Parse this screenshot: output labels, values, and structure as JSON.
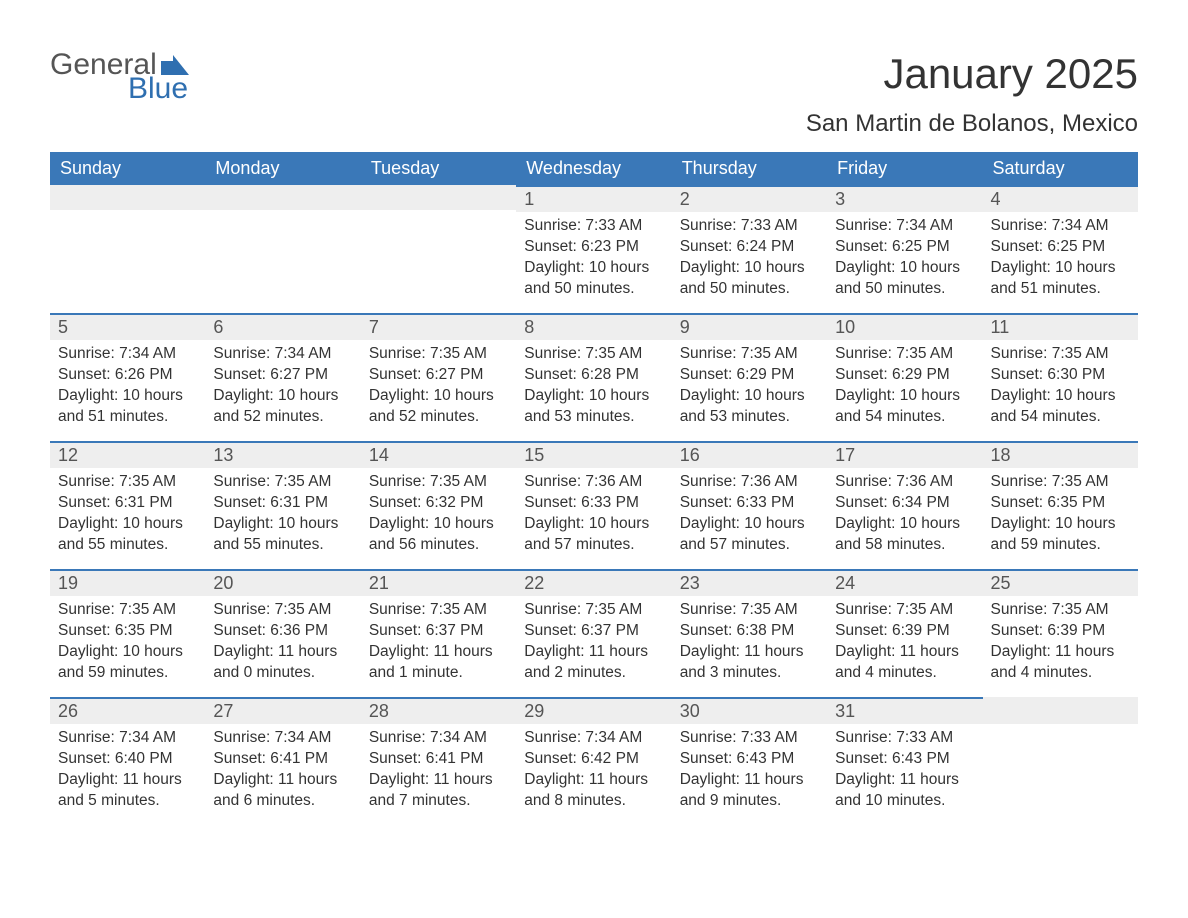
{
  "brand": {
    "general": "General",
    "blue": "Blue",
    "accent_color": "#2f6fb0"
  },
  "title": "January 2025",
  "location": "San Martin de Bolanos, Mexico",
  "colors": {
    "header_bg": "#3a78b8",
    "header_text": "#ffffff",
    "daybar_bg": "#eeeeee",
    "daybar_border": "#3a78b8",
    "body_bg": "#ffffff",
    "text": "#333333",
    "muted": "#555555"
  },
  "weekdays": [
    "Sunday",
    "Monday",
    "Tuesday",
    "Wednesday",
    "Thursday",
    "Friday",
    "Saturday"
  ],
  "weeks": [
    [
      {
        "empty": true
      },
      {
        "empty": true
      },
      {
        "empty": true
      },
      {
        "day": "1",
        "sunrise": "Sunrise: 7:33 AM",
        "sunset": "Sunset: 6:23 PM",
        "daylight1": "Daylight: 10 hours",
        "daylight2": "and 50 minutes."
      },
      {
        "day": "2",
        "sunrise": "Sunrise: 7:33 AM",
        "sunset": "Sunset: 6:24 PM",
        "daylight1": "Daylight: 10 hours",
        "daylight2": "and 50 minutes."
      },
      {
        "day": "3",
        "sunrise": "Sunrise: 7:34 AM",
        "sunset": "Sunset: 6:25 PM",
        "daylight1": "Daylight: 10 hours",
        "daylight2": "and 50 minutes."
      },
      {
        "day": "4",
        "sunrise": "Sunrise: 7:34 AM",
        "sunset": "Sunset: 6:25 PM",
        "daylight1": "Daylight: 10 hours",
        "daylight2": "and 51 minutes."
      }
    ],
    [
      {
        "day": "5",
        "sunrise": "Sunrise: 7:34 AM",
        "sunset": "Sunset: 6:26 PM",
        "daylight1": "Daylight: 10 hours",
        "daylight2": "and 51 minutes."
      },
      {
        "day": "6",
        "sunrise": "Sunrise: 7:34 AM",
        "sunset": "Sunset: 6:27 PM",
        "daylight1": "Daylight: 10 hours",
        "daylight2": "and 52 minutes."
      },
      {
        "day": "7",
        "sunrise": "Sunrise: 7:35 AM",
        "sunset": "Sunset: 6:27 PM",
        "daylight1": "Daylight: 10 hours",
        "daylight2": "and 52 minutes."
      },
      {
        "day": "8",
        "sunrise": "Sunrise: 7:35 AM",
        "sunset": "Sunset: 6:28 PM",
        "daylight1": "Daylight: 10 hours",
        "daylight2": "and 53 minutes."
      },
      {
        "day": "9",
        "sunrise": "Sunrise: 7:35 AM",
        "sunset": "Sunset: 6:29 PM",
        "daylight1": "Daylight: 10 hours",
        "daylight2": "and 53 minutes."
      },
      {
        "day": "10",
        "sunrise": "Sunrise: 7:35 AM",
        "sunset": "Sunset: 6:29 PM",
        "daylight1": "Daylight: 10 hours",
        "daylight2": "and 54 minutes."
      },
      {
        "day": "11",
        "sunrise": "Sunrise: 7:35 AM",
        "sunset": "Sunset: 6:30 PM",
        "daylight1": "Daylight: 10 hours",
        "daylight2": "and 54 minutes."
      }
    ],
    [
      {
        "day": "12",
        "sunrise": "Sunrise: 7:35 AM",
        "sunset": "Sunset: 6:31 PM",
        "daylight1": "Daylight: 10 hours",
        "daylight2": "and 55 minutes."
      },
      {
        "day": "13",
        "sunrise": "Sunrise: 7:35 AM",
        "sunset": "Sunset: 6:31 PM",
        "daylight1": "Daylight: 10 hours",
        "daylight2": "and 55 minutes."
      },
      {
        "day": "14",
        "sunrise": "Sunrise: 7:35 AM",
        "sunset": "Sunset: 6:32 PM",
        "daylight1": "Daylight: 10 hours",
        "daylight2": "and 56 minutes."
      },
      {
        "day": "15",
        "sunrise": "Sunrise: 7:36 AM",
        "sunset": "Sunset: 6:33 PM",
        "daylight1": "Daylight: 10 hours",
        "daylight2": "and 57 minutes."
      },
      {
        "day": "16",
        "sunrise": "Sunrise: 7:36 AM",
        "sunset": "Sunset: 6:33 PM",
        "daylight1": "Daylight: 10 hours",
        "daylight2": "and 57 minutes."
      },
      {
        "day": "17",
        "sunrise": "Sunrise: 7:36 AM",
        "sunset": "Sunset: 6:34 PM",
        "daylight1": "Daylight: 10 hours",
        "daylight2": "and 58 minutes."
      },
      {
        "day": "18",
        "sunrise": "Sunrise: 7:35 AM",
        "sunset": "Sunset: 6:35 PM",
        "daylight1": "Daylight: 10 hours",
        "daylight2": "and 59 minutes."
      }
    ],
    [
      {
        "day": "19",
        "sunrise": "Sunrise: 7:35 AM",
        "sunset": "Sunset: 6:35 PM",
        "daylight1": "Daylight: 10 hours",
        "daylight2": "and 59 minutes."
      },
      {
        "day": "20",
        "sunrise": "Sunrise: 7:35 AM",
        "sunset": "Sunset: 6:36 PM",
        "daylight1": "Daylight: 11 hours",
        "daylight2": "and 0 minutes."
      },
      {
        "day": "21",
        "sunrise": "Sunrise: 7:35 AM",
        "sunset": "Sunset: 6:37 PM",
        "daylight1": "Daylight: 11 hours",
        "daylight2": "and 1 minute."
      },
      {
        "day": "22",
        "sunrise": "Sunrise: 7:35 AM",
        "sunset": "Sunset: 6:37 PM",
        "daylight1": "Daylight: 11 hours",
        "daylight2": "and 2 minutes."
      },
      {
        "day": "23",
        "sunrise": "Sunrise: 7:35 AM",
        "sunset": "Sunset: 6:38 PM",
        "daylight1": "Daylight: 11 hours",
        "daylight2": "and 3 minutes."
      },
      {
        "day": "24",
        "sunrise": "Sunrise: 7:35 AM",
        "sunset": "Sunset: 6:39 PM",
        "daylight1": "Daylight: 11 hours",
        "daylight2": "and 4 minutes."
      },
      {
        "day": "25",
        "sunrise": "Sunrise: 7:35 AM",
        "sunset": "Sunset: 6:39 PM",
        "daylight1": "Daylight: 11 hours",
        "daylight2": "and 4 minutes."
      }
    ],
    [
      {
        "day": "26",
        "sunrise": "Sunrise: 7:34 AM",
        "sunset": "Sunset: 6:40 PM",
        "daylight1": "Daylight: 11 hours",
        "daylight2": "and 5 minutes."
      },
      {
        "day": "27",
        "sunrise": "Sunrise: 7:34 AM",
        "sunset": "Sunset: 6:41 PM",
        "daylight1": "Daylight: 11 hours",
        "daylight2": "and 6 minutes."
      },
      {
        "day": "28",
        "sunrise": "Sunrise: 7:34 AM",
        "sunset": "Sunset: 6:41 PM",
        "daylight1": "Daylight: 11 hours",
        "daylight2": "and 7 minutes."
      },
      {
        "day": "29",
        "sunrise": "Sunrise: 7:34 AM",
        "sunset": "Sunset: 6:42 PM",
        "daylight1": "Daylight: 11 hours",
        "daylight2": "and 8 minutes."
      },
      {
        "day": "30",
        "sunrise": "Sunrise: 7:33 AM",
        "sunset": "Sunset: 6:43 PM",
        "daylight1": "Daylight: 11 hours",
        "daylight2": "and 9 minutes."
      },
      {
        "day": "31",
        "sunrise": "Sunrise: 7:33 AM",
        "sunset": "Sunset: 6:43 PM",
        "daylight1": "Daylight: 11 hours",
        "daylight2": "and 10 minutes."
      },
      {
        "empty": true
      }
    ]
  ]
}
